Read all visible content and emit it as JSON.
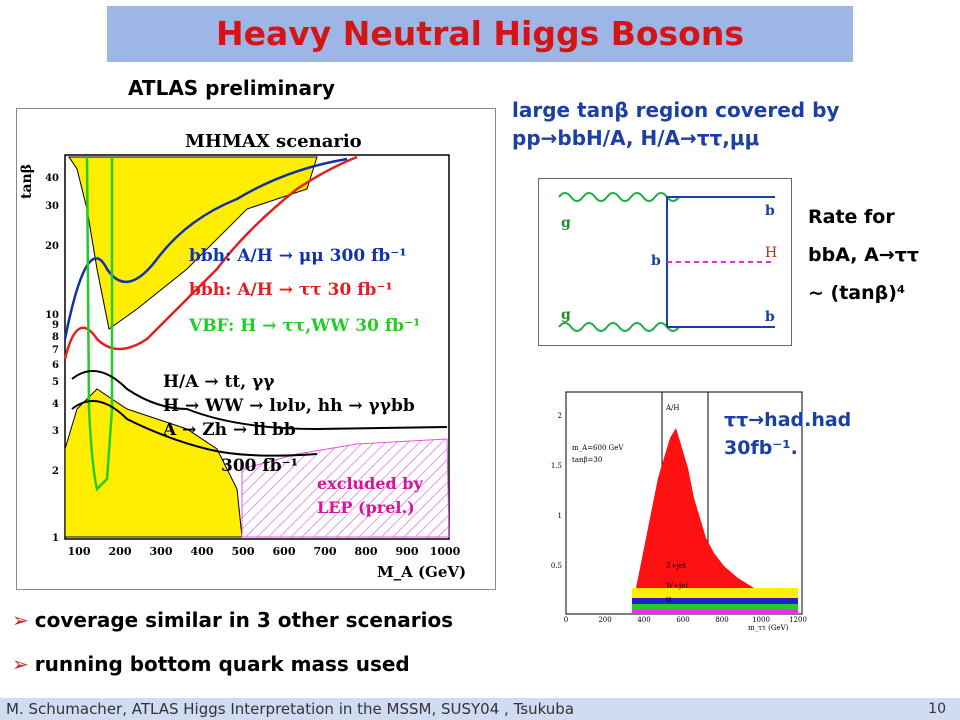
{
  "title": "Heavy Neutral Higgs Bosons",
  "atlas_label": "ATLAS preliminary",
  "plot": {
    "scenario": "MHMAX scenario",
    "y_axis_label": "tanβ",
    "x_axis_label": "M_A (GeV)",
    "x_ticks": [
      "100",
      "200",
      "300",
      "400",
      "500",
      "600",
      "700",
      "800",
      "900",
      "1000"
    ],
    "y_ticks": [
      "1",
      "2",
      "3",
      "4",
      "5",
      "6",
      "7",
      "8",
      "9",
      "10",
      "20",
      "30",
      "40"
    ],
    "legend_bbh_mumu": "bbh: A/H → μμ 300 fb⁻¹",
    "legend_bbh_tautau": "bbh: A/H → ττ 30 fb⁻¹",
    "legend_vbf": "VBF: H → ττ,WW 30 fb⁻¹",
    "legend_ha_tt": "H/A → tt, γγ",
    "legend_h_ww": "H → WW → lνlν, hh → γγbb",
    "legend_a_zh": "A → Zh → ll bb",
    "lumi_300": "300 fb⁻¹",
    "excluded_1": "excluded by",
    "excluded_2": "LEP (prel.)",
    "colors": {
      "mumu": "#1133aa",
      "tautau": "#e02020",
      "vbf": "#22cc22",
      "yellow": "#ffee00",
      "hatch": "#dd55dd"
    }
  },
  "process_line1": "large tanβ region covered by",
  "process_line2": "pp→bbH/A, H/A→ττ,μμ",
  "feynman": {
    "g_top": "g",
    "g_bottom": "g",
    "b_top": "b",
    "b_mid": "b",
    "b_bottom": "b",
    "h": "H"
  },
  "rate": {
    "line1": "Rate for",
    "line2": "bbA, A→ττ",
    "line3": "~ (tanβ)⁴"
  },
  "hist": {
    "label1": "ττ→had.had",
    "label2": "30fb⁻¹.",
    "ah": "A/H",
    "mass": "m_A=600 GeV",
    "tanb": "tanβ=30",
    "zjets": "Z+jet",
    "ww": "W+jet",
    "tt": "tt",
    "xlabel": "m_ττ (GeV)",
    "x_ticks": [
      "0",
      "200",
      "400",
      "600",
      "800",
      "1000",
      "1200"
    ],
    "y_ticks": [
      "2",
      "1.5",
      "1",
      "0.5"
    ]
  },
  "bullets": [
    "coverage similar in 3 other scenarios",
    "running bottom quark mass used"
  ],
  "footer": {
    "left": "M. Schumacher,     ATLAS Higgs Interpretation in the  MSSM, SUSY04 , Tsukuba",
    "page": "10"
  }
}
